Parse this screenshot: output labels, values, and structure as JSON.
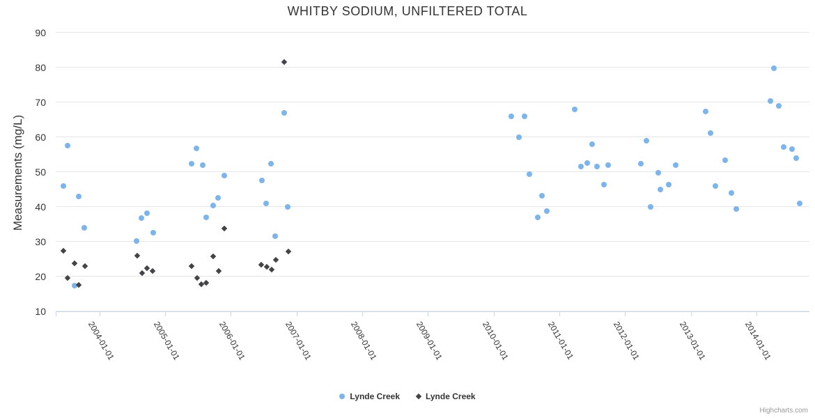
{
  "title": "WHITBY SODIUM, UNFILTERED TOTAL",
  "credit": "Highcharts.com",
  "colors": {
    "series1": "#7cb5ec",
    "series2": "#434348",
    "gridline": "#e6e6e6",
    "axis_line": "#ccd6eb",
    "text": "#333333",
    "credit_text": "#999999"
  },
  "y_axis": {
    "title": "Measurements (mg/L)",
    "ticks": [
      10,
      20,
      30,
      40,
      50,
      60,
      70,
      80,
      90
    ],
    "min": 10,
    "max": 90
  },
  "x_axis": {
    "ticks": [
      {
        "year": 2004,
        "label": "2004-01-01"
      },
      {
        "year": 2005,
        "label": "2005-01-01"
      },
      {
        "year": 2006,
        "label": "2006-01-01"
      },
      {
        "year": 2007,
        "label": "2007-01-01"
      },
      {
        "year": 2008,
        "label": "2008-01-01"
      },
      {
        "year": 2009,
        "label": "2009-01-01"
      },
      {
        "year": 2010,
        "label": "2010-01-01"
      },
      {
        "year": 2011,
        "label": "2011-01-01"
      },
      {
        "year": 2012,
        "label": "2012-01-01"
      },
      {
        "year": 2013,
        "label": "2013-01-01"
      },
      {
        "year": 2014,
        "label": "2014-01-01"
      }
    ],
    "min_year": 2003.34,
    "max_year": 2014.8
  },
  "legend": [
    {
      "label": "Lynde Creek",
      "marker": "circle",
      "color": "#7cb5ec"
    },
    {
      "label": "Lynde Creek",
      "marker": "diamond",
      "color": "#434348"
    }
  ],
  "chart_data": {
    "type": "scatter",
    "title": "WHITBY SODIUM, UNFILTERED TOTAL",
    "xlabel": "",
    "ylabel": "Measurements (mg/L)",
    "ylim": [
      10,
      90
    ],
    "xlim_decimal_years": [
      2003.34,
      2014.8
    ],
    "grid": "horizontal-only",
    "legend_position": "bottom-center",
    "x_unit": "decimal_year",
    "series": [
      {
        "name": "Lynde Creek",
        "marker": "circle",
        "color": "#7cb5ec",
        "points": [
          [
            2003.45,
            46.0
          ],
          [
            2003.52,
            57.5
          ],
          [
            2003.62,
            17.3
          ],
          [
            2003.69,
            43.0
          ],
          [
            2003.77,
            34.0
          ],
          [
            2004.57,
            30.2
          ],
          [
            2004.64,
            36.7
          ],
          [
            2004.72,
            38.2
          ],
          [
            2004.82,
            32.5
          ],
          [
            2005.4,
            52.3
          ],
          [
            2005.48,
            56.7
          ],
          [
            2005.57,
            52.0
          ],
          [
            2005.62,
            37.0
          ],
          [
            2005.73,
            40.4
          ],
          [
            2005.81,
            42.5
          ],
          [
            2005.9,
            49.0
          ],
          [
            2006.47,
            47.5
          ],
          [
            2006.54,
            41.0
          ],
          [
            2006.61,
            52.4
          ],
          [
            2006.67,
            31.6
          ],
          [
            2006.81,
            67.0
          ],
          [
            2006.87,
            40.0
          ],
          [
            2010.27,
            66.0
          ],
          [
            2010.38,
            60.0
          ],
          [
            2010.47,
            66.0
          ],
          [
            2010.54,
            49.4
          ],
          [
            2010.67,
            37.0
          ],
          [
            2010.73,
            43.1
          ],
          [
            2010.81,
            38.8
          ],
          [
            2011.23,
            68.0
          ],
          [
            2011.33,
            51.6
          ],
          [
            2011.42,
            52.5
          ],
          [
            2011.5,
            57.9
          ],
          [
            2011.57,
            51.6
          ],
          [
            2011.68,
            46.3
          ],
          [
            2011.74,
            52.0
          ],
          [
            2012.24,
            52.3
          ],
          [
            2012.32,
            59.0
          ],
          [
            2012.39,
            40.0
          ],
          [
            2012.5,
            49.7
          ],
          [
            2012.54,
            44.9
          ],
          [
            2012.66,
            46.4
          ],
          [
            2012.77,
            52.0
          ],
          [
            2013.23,
            67.4
          ],
          [
            2013.3,
            61.1
          ],
          [
            2013.37,
            46.0
          ],
          [
            2013.52,
            53.3
          ],
          [
            2013.62,
            43.9
          ],
          [
            2013.69,
            39.4
          ],
          [
            2014.21,
            70.4
          ],
          [
            2014.26,
            79.7
          ],
          [
            2014.34,
            69.0
          ],
          [
            2014.41,
            57.2
          ],
          [
            2014.54,
            56.5
          ],
          [
            2014.6,
            53.9
          ],
          [
            2014.66,
            40.9
          ]
        ]
      },
      {
        "name": "Lynde Creek",
        "marker": "diamond",
        "color": "#434348",
        "points": [
          [
            2003.45,
            27.4
          ],
          [
            2003.52,
            19.5
          ],
          [
            2003.62,
            23.7
          ],
          [
            2003.68,
            17.5
          ],
          [
            2003.78,
            22.9
          ],
          [
            2004.58,
            25.9
          ],
          [
            2004.65,
            20.9
          ],
          [
            2004.72,
            22.4
          ],
          [
            2004.81,
            21.5
          ],
          [
            2005.4,
            22.9
          ],
          [
            2005.49,
            19.5
          ],
          [
            2005.55,
            17.8
          ],
          [
            2005.62,
            18.2
          ],
          [
            2005.73,
            25.7
          ],
          [
            2005.82,
            21.6
          ],
          [
            2005.9,
            33.8
          ],
          [
            2006.46,
            23.3
          ],
          [
            2006.55,
            22.7
          ],
          [
            2006.62,
            21.9
          ],
          [
            2006.68,
            24.8
          ],
          [
            2006.81,
            81.5
          ],
          [
            2006.88,
            27.1
          ]
        ]
      }
    ]
  }
}
